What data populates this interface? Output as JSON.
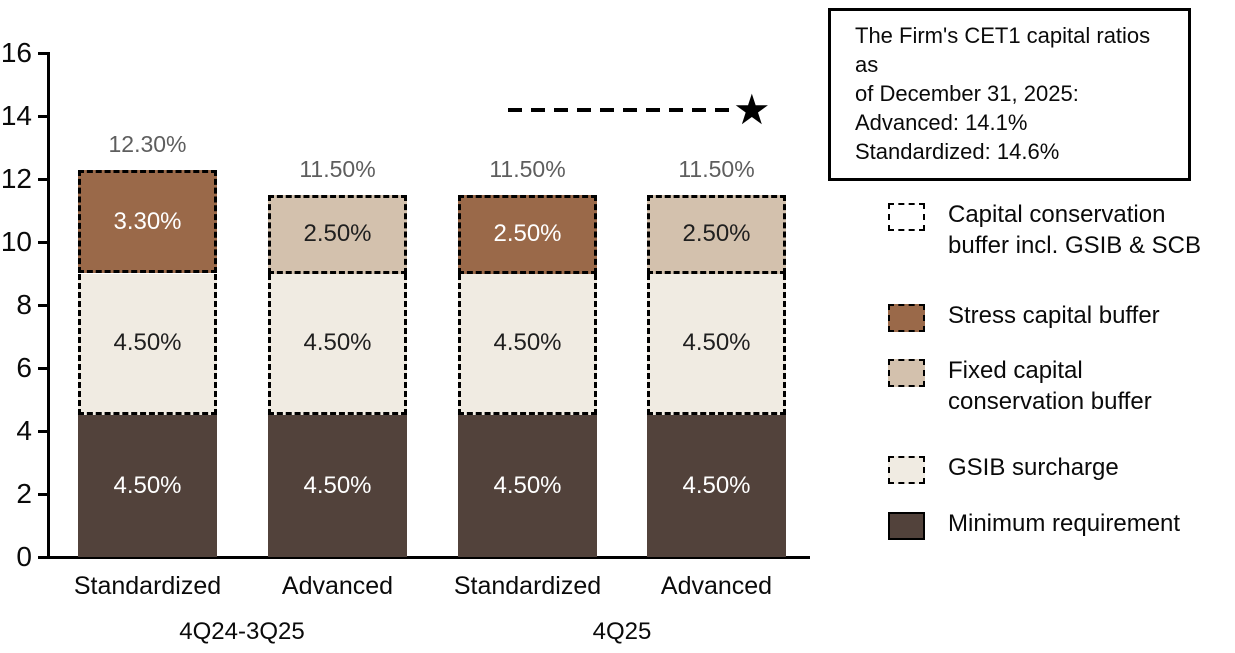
{
  "colors": {
    "minimum_requirement": "#52423B",
    "gsib_surcharge": "#F0EBE2",
    "stress_capital_buffer": "#9A6949",
    "fixed_capital_conservation_buffer": "#D3C1AD",
    "capital_conservation_buffer": "#FFFFFF",
    "total_label_gray": "#5E5E5E",
    "axis_black": "#000000"
  },
  "chart_data": {
    "type": "bar",
    "stacked": true,
    "grid": false,
    "ylim": [
      0,
      16
    ],
    "yticks": [
      0,
      2,
      4,
      6,
      8,
      10,
      12,
      14,
      16
    ],
    "series_colors": {
      "Minimum requirement": {
        "fill": "#52423B",
        "text": "#FFFFFF"
      },
      "GSIB surcharge": {
        "fill": "#F0EBE2",
        "text": "#1F1F1F"
      },
      "Stress capital buffer": {
        "fill": "#9A6949",
        "text": "#FFFFFF"
      },
      "Fixed capital conservation buffer": {
        "fill": "#D3C1AD",
        "text": "#1F1F1F"
      }
    },
    "groups": [
      {
        "label": "4Q24-3Q25",
        "bars": [
          {
            "label": "Standardized",
            "total": 12.3,
            "total_label": "12.30%",
            "segments": [
              {
                "name": "Minimum requirement",
                "value": 4.5,
                "label": "4.50%"
              },
              {
                "name": "GSIB surcharge",
                "value": 4.5,
                "label": "4.50%"
              },
              {
                "name": "Stress capital buffer",
                "value": 3.3,
                "label": "3.30%"
              }
            ]
          },
          {
            "label": "Advanced",
            "total": 11.5,
            "total_label": "11.50%",
            "segments": [
              {
                "name": "Minimum requirement",
                "value": 4.5,
                "label": "4.50%"
              },
              {
                "name": "GSIB surcharge",
                "value": 4.5,
                "label": "4.50%"
              },
              {
                "name": "Fixed capital conservation buffer",
                "value": 2.5,
                "label": "2.50%"
              }
            ]
          }
        ]
      },
      {
        "label": "4Q25",
        "bars": [
          {
            "label": "Standardized",
            "total": 11.5,
            "total_label": "11.50%",
            "segments": [
              {
                "name": "Minimum requirement",
                "value": 4.5,
                "label": "4.50%"
              },
              {
                "name": "GSIB surcharge",
                "value": 4.5,
                "label": "4.50%"
              },
              {
                "name": "Stress capital buffer",
                "value": 2.5,
                "label": "2.50%"
              }
            ]
          },
          {
            "label": "Advanced",
            "total": 11.5,
            "total_label": "11.50%",
            "segments": [
              {
                "name": "Minimum requirement",
                "value": 4.5,
                "label": "4.50%"
              },
              {
                "name": "GSIB surcharge",
                "value": 4.5,
                "label": "4.50%"
              },
              {
                "name": "Fixed capital conservation buffer",
                "value": 2.5,
                "label": "2.50%"
              }
            ]
          }
        ]
      }
    ],
    "annotation": {
      "y_value": 14.2,
      "line_style": "dashed",
      "marker": "star",
      "marker_glyph": "★",
      "spans_group": "4Q25"
    }
  },
  "note_box": {
    "lines": [
      "The Firm's CET1 capital ratios as",
      "of December 31, 2025:",
      "Advanced: 14.1%",
      "Standardized: 14.6%"
    ]
  },
  "legend": {
    "items": [
      {
        "name": "Capital conservation buffer incl. GSIB & SCB",
        "lines": [
          "Capital conservation",
          "buffer incl. GSIB & SCB"
        ],
        "swatch_fill": "#FFFFFF",
        "swatch_border": "dashed"
      },
      {
        "name": "Stress capital buffer",
        "lines": [
          "Stress capital buffer"
        ],
        "swatch_fill": "#9A6949",
        "swatch_border": "dashed"
      },
      {
        "name": "Fixed capital conservation buffer",
        "lines": [
          "Fixed capital",
          "conservation buffer"
        ],
        "swatch_fill": "#D3C1AD",
        "swatch_border": "dashed"
      },
      {
        "name": "GSIB surcharge",
        "lines": [
          "GSIB surcharge"
        ],
        "swatch_fill": "#F0EBE2",
        "swatch_border": "dashed"
      },
      {
        "name": "Minimum requirement",
        "lines": [
          "Minimum requirement"
        ],
        "swatch_fill": "#52423B",
        "swatch_border": "solid"
      }
    ]
  }
}
